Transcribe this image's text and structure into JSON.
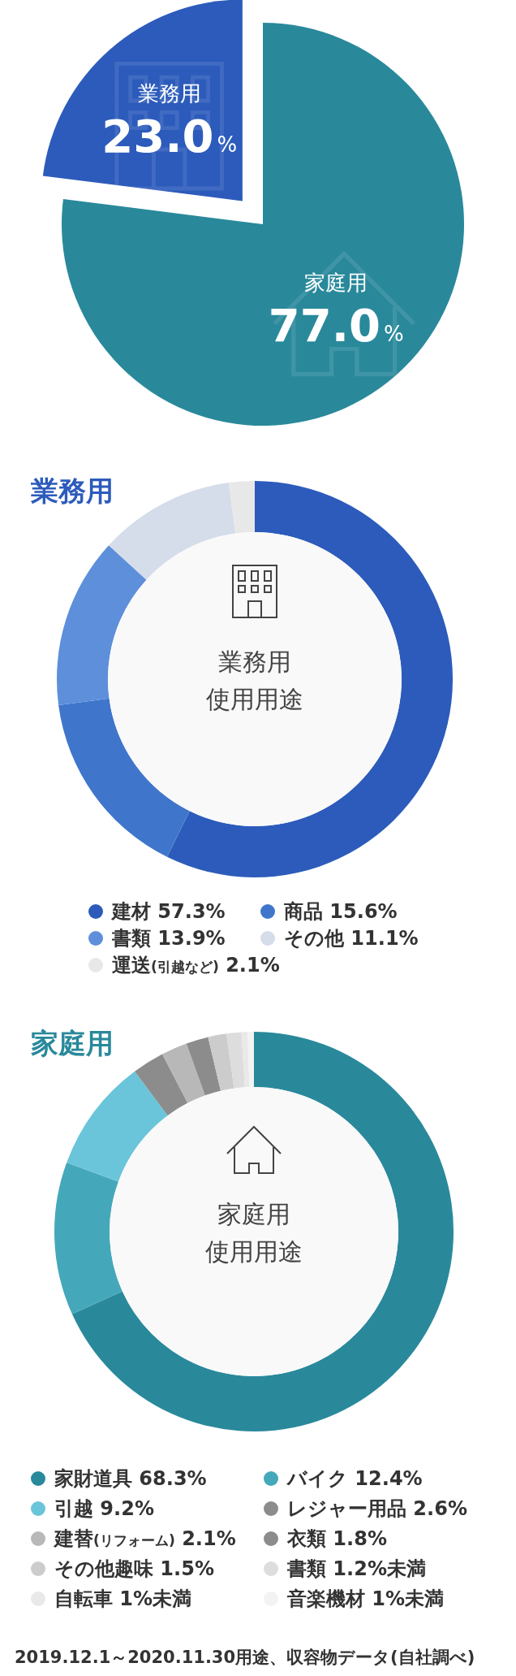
{
  "chart_data": [
    {
      "type": "pie",
      "categories": [
        "家庭用",
        "業務用"
      ],
      "values": [
        77.0,
        23.0
      ],
      "colors": [
        "#29899b",
        "#2c5bbb"
      ],
      "value_labels": [
        "77.0%",
        "23.0%"
      ],
      "legend": false
    },
    {
      "type": "donut",
      "title": "業務用",
      "subtitle": "業務用使用用途",
      "categories": [
        "建材",
        "商品",
        "書類",
        "その他",
        "運送(引越など)"
      ],
      "values": [
        57.3,
        15.6,
        13.9,
        11.1,
        2.1
      ],
      "colors": [
        "#2c5bbb",
        "#3f76cc",
        "#5d8fdb",
        "#d5dcea",
        "#e8e8e8"
      ],
      "value_labels": [
        "57.3%",
        "15.6%",
        "13.9%",
        "11.1%",
        "2.1%"
      ],
      "legend": "bottom"
    },
    {
      "type": "donut",
      "title": "家庭用",
      "subtitle": "家庭用使用用途",
      "categories": [
        "家財道具",
        "バイク",
        "引越",
        "レジャー用品",
        "建替(リフォーム)",
        "衣類",
        "その他趣味",
        "書類",
        "自転車",
        "音楽機材"
      ],
      "values": [
        68.3,
        12.4,
        9.2,
        2.6,
        2.1,
        1.8,
        1.5,
        1.2,
        0.5,
        0.5
      ],
      "colors": [
        "#29899b",
        "#44a8ba",
        "#6ac5da",
        "#8c8c8c",
        "#b8b8b8",
        "#8c8c8c",
        "#cccccc",
        "#dddddd",
        "#e9e9e9",
        "#f3f3f3"
      ],
      "value_labels": [
        "68.3%",
        "12.4%",
        "9.2%",
        "2.6%",
        "2.1%",
        "1.8%",
        "1.5%",
        "1.2%未満",
        "1%未満",
        "1%未満"
      ],
      "legend": "bottom",
      "annotations": [
        "2019.12.1～2020.11.30用途、収容物データ(自社調べ)"
      ]
    }
  ]
}
